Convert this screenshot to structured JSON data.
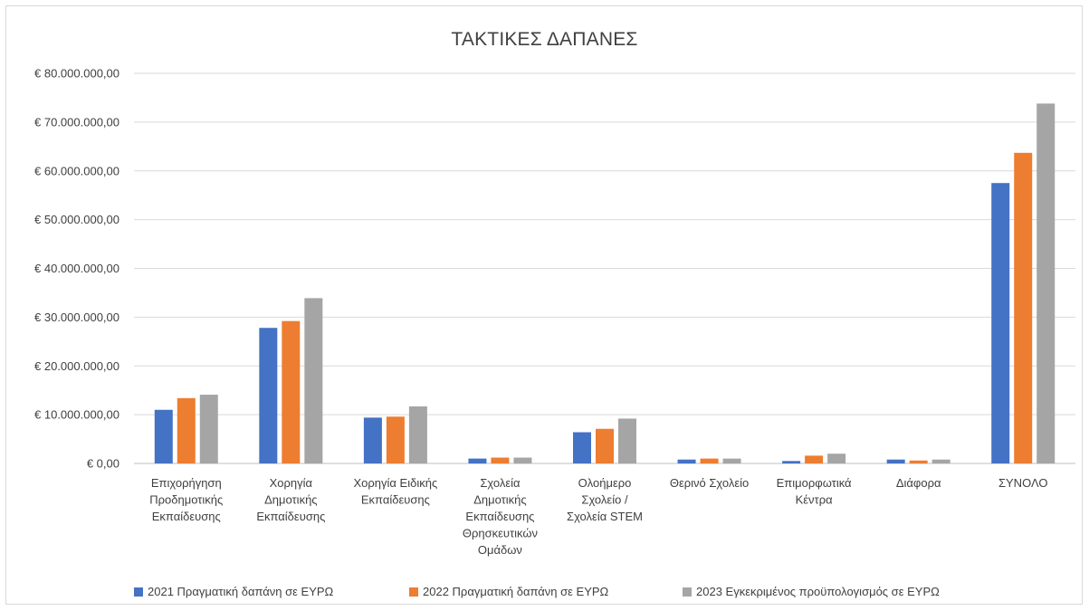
{
  "chart_data": {
    "type": "bar",
    "title": "ΤΑΚΤΙΚΕΣ ΔΑΠΑΝΕΣ",
    "xlabel": "",
    "ylabel": "",
    "ylim": [
      0,
      80000000
    ],
    "yticks": [
      {
        "value": 0,
        "label": "€ 0,00"
      },
      {
        "value": 10000000,
        "label": "€ 10.000.000,00"
      },
      {
        "value": 20000000,
        "label": "€ 20.000.000,00"
      },
      {
        "value": 30000000,
        "label": "€ 30.000.000,00"
      },
      {
        "value": 40000000,
        "label": "€ 40.000.000,00"
      },
      {
        "value": 50000000,
        "label": "€ 50.000.000,00"
      },
      {
        "value": 60000000,
        "label": "€ 60.000.000,00"
      },
      {
        "value": 70000000,
        "label": "€ 70.000.000,00"
      },
      {
        "value": 80000000,
        "label": "€ 80.000.000,00"
      }
    ],
    "grid": true,
    "legend_position": "bottom",
    "categories": [
      [
        "Επιχορήγηση",
        "Προδημοτικής",
        "Εκπαίδευσης"
      ],
      [
        "Χορηγία",
        "Δημοτικής",
        "Εκπαίδευσης"
      ],
      [
        "Χορηγία Ειδικής",
        "Εκπαίδευσης"
      ],
      [
        "Σχολεία",
        "Δημοτικής",
        "Εκπαίδευσης",
        "Θρησκευτικών",
        "Ομάδων"
      ],
      [
        "Ολοήμερο",
        "Σχολείο /",
        "Σχολεία STEM"
      ],
      [
        "Θερινό Σχολείο"
      ],
      [
        "Επιμορφωτικά",
        "Κέντρα"
      ],
      [
        "Διάφορα"
      ],
      [
        "ΣΥΝΟΛΟ"
      ]
    ],
    "series": [
      {
        "name": "2021  Πραγματική δαπάνη σε ΕΥΡΩ",
        "color": "#4472c4",
        "values": [
          11000000,
          27800000,
          9400000,
          1000000,
          6400000,
          800000,
          500000,
          800000,
          57500000
        ]
      },
      {
        "name": "2022  Πραγματική δαπάνη σε ΕΥΡΩ",
        "color": "#ed7d31",
        "values": [
          13400000,
          29200000,
          9600000,
          1200000,
          7100000,
          1000000,
          1600000,
          600000,
          63700000
        ]
      },
      {
        "name": "2023  Εγκεκριμένος προϋπολογισμός σε ΕΥΡΩ",
        "color": "#a5a5a5",
        "values": [
          14100000,
          33900000,
          11700000,
          1200000,
          9200000,
          1000000,
          2000000,
          800000,
          73800000
        ]
      }
    ]
  }
}
